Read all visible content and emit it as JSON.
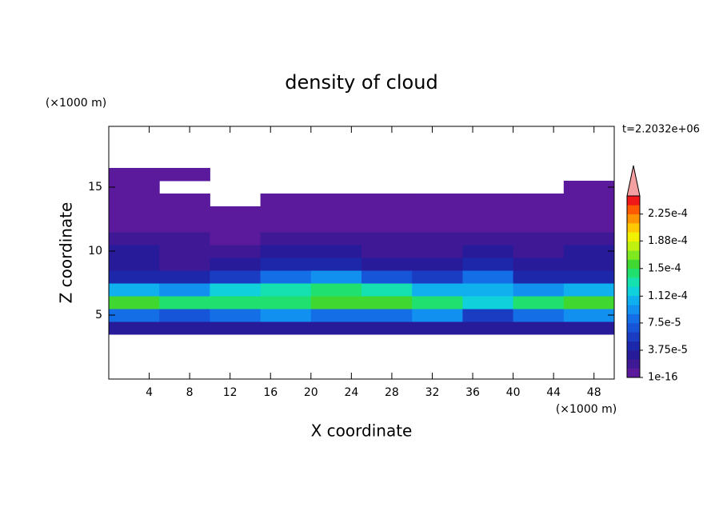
{
  "chart_data": {
    "type": "contourf",
    "title": "density of cloud",
    "xlabel": "X coordinate",
    "ylabel": "Z coordinate",
    "xunit": "(×1000 m)",
    "yunit": "(×1000 m)",
    "annotation": "t=2.2032e+06",
    "xlim": [
      0,
      50
    ],
    "ylim": [
      0,
      19.75
    ],
    "xticks": [
      4,
      8,
      12,
      16,
      20,
      24,
      28,
      32,
      36,
      40,
      44,
      48
    ],
    "yticks": [
      5,
      10,
      15
    ],
    "x": [
      2.5,
      7.5,
      12.5,
      17.5,
      22.5,
      27.5,
      32.5,
      37.5,
      42.5,
      47.5
    ],
    "z": [
      4,
      5,
      6,
      7,
      8,
      9,
      10,
      11,
      12,
      13,
      14,
      15,
      16
    ],
    "values": [
      [
        3e-05,
        3e-05,
        3e-05,
        3e-05,
        3e-05,
        3e-05,
        3e-05,
        3e-05,
        3e-05,
        3e-05
      ],
      [
        8e-05,
        7e-05,
        8e-05,
        9e-05,
        8e-05,
        8e-05,
        9e-05,
        6e-05,
        8e-05,
        9e-05
      ],
      [
        0.000155,
        0.00014,
        0.00015,
        0.000145,
        0.00016,
        0.000155,
        0.000145,
        0.00012,
        0.00015,
        0.000155
      ],
      [
        0.00011,
        9e-05,
        0.00012,
        0.00013,
        0.000145,
        0.000135,
        0.00011,
        0.00011,
        0.0001,
        0.00011
      ],
      [
        5e-05,
        4e-05,
        6e-05,
        8e-05,
        9e-05,
        7e-05,
        6e-05,
        8e-05,
        4e-05,
        5e-05
      ],
      [
        3e-05,
        2.5e-05,
        3e-05,
        5e-05,
        5e-05,
        3.5e-05,
        3e-05,
        5e-05,
        3e-05,
        3e-05
      ],
      [
        3e-05,
        2e-05,
        2e-05,
        3e-05,
        3e-05,
        2.5e-05,
        2e-05,
        3e-05,
        2.5e-05,
        3e-05
      ],
      [
        1.5e-05,
        1.5e-05,
        1.2e-05,
        1.5e-05,
        1.5e-05,
        1.3e-05,
        1.5e-05,
        1.5e-05,
        1.5e-05,
        1.5e-05
      ],
      [
        8e-06,
        1e-05,
        8e-06,
        8e-06,
        8e-06,
        8e-06,
        8e-06,
        8e-06,
        8e-06,
        8e-06
      ],
      [
        5e-06,
        4e-06,
        4e-06,
        5e-06,
        5e-06,
        5e-06,
        5e-06,
        5e-06,
        5e-06,
        5e-06
      ],
      [
        4e-06,
        3e-06,
        null,
        4e-06,
        4e-06,
        4e-06,
        4e-06,
        4e-06,
        4e-06,
        3e-06
      ],
      [
        3e-06,
        null,
        null,
        null,
        null,
        null,
        null,
        null,
        null,
        3e-06
      ],
      [
        3e-06,
        3e-06,
        null,
        null,
        null,
        null,
        null,
        null,
        null,
        null
      ]
    ],
    "clim": [
      1e-16,
      0.00025
    ],
    "cticks": [
      1e-16,
      {
        "value": 3.75e-05,
        "label": "3.75e-5"
      },
      {
        "value": 7.5e-05,
        "label": "7.5e-5"
      },
      {
        "value": 0.000112,
        "label": "1.12e-4"
      },
      {
        "value": 0.00015,
        "label": "1.5e-4"
      },
      {
        "value": 0.000188,
        "label": "1.88e-4"
      },
      {
        "value": 0.000225,
        "label": "2.25e-4"
      }
    ],
    "colors": [
      "#5b1a9b",
      "#3f1896",
      "#271b99",
      "#1d27aa",
      "#1a3cc2",
      "#1755d8",
      "#146ee6",
      "#1190f0",
      "#10b0ee",
      "#10d0dc",
      "#14e0b0",
      "#20e070",
      "#40d830",
      "#80e820",
      "#c0f010",
      "#f0f000",
      "#ffc800",
      "#ff9400",
      "#ff5a00",
      "#f01818"
    ],
    "extend_color": "#f4a0a0"
  }
}
